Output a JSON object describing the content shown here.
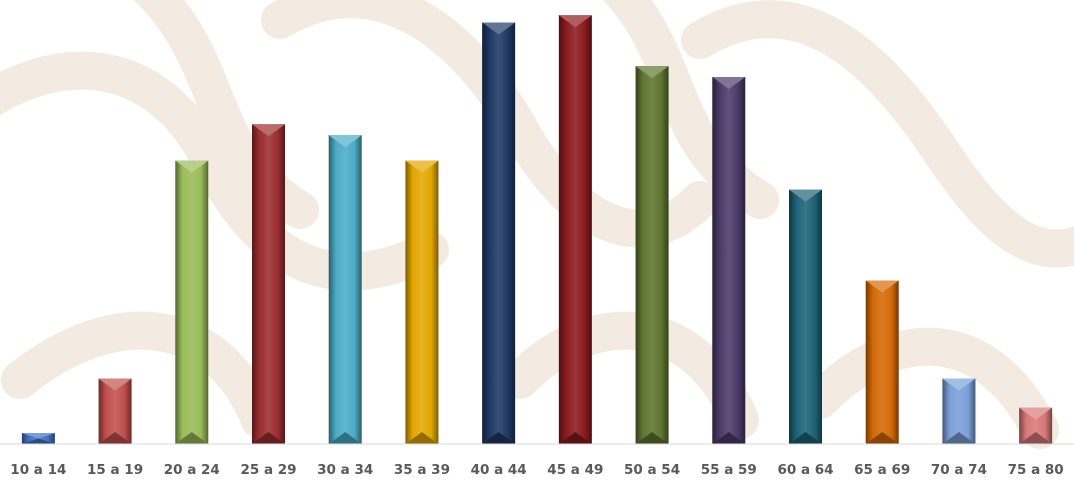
{
  "chart_data": {
    "type": "bar",
    "categories": [
      "10 a 14",
      "15 a 19",
      "20 a 24",
      "25 a 29",
      "30 a 34",
      "35 a 39",
      "40 a 44",
      "45 a 49",
      "50 a 54",
      "55 a 59",
      "60 a 64",
      "65 a 69",
      "70 a 74",
      "75 a 80"
    ],
    "values": [
      3,
      18,
      78,
      88,
      85,
      78,
      116,
      118,
      104,
      101,
      70,
      45,
      18,
      10
    ],
    "ylim": [
      0,
      120
    ],
    "grid": false,
    "legend": "none",
    "colors": [
      "#4472c4",
      "#c0504d",
      "#9bbb59",
      "#9b2d30",
      "#4bacc6",
      "#e3a700",
      "#1f3864",
      "#8b1a1e",
      "#5f7530",
      "#4b3a69",
      "#1d6275",
      "#d46a06",
      "#7ba0d8",
      "#d9787a"
    ],
    "watermark_color": "#f3ebe1",
    "axis_color": "#d9d9d9",
    "label_color": "#595959"
  }
}
